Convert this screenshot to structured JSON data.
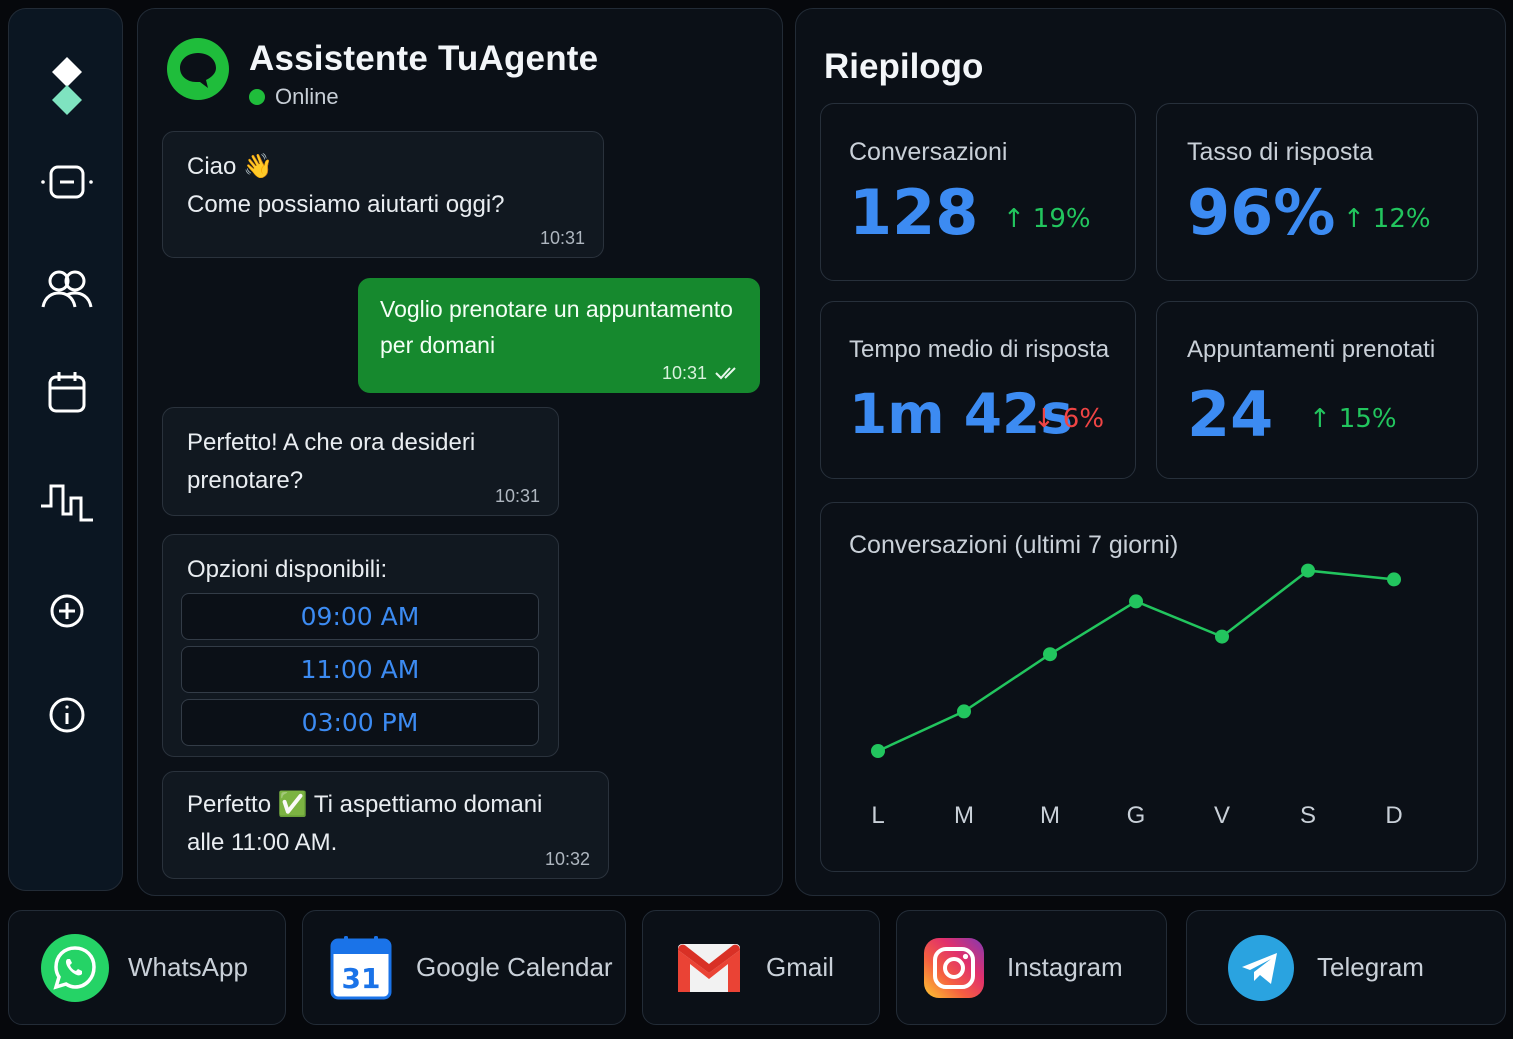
{
  "chat": {
    "title": "Assistente TuAgente",
    "status": "Online",
    "messages": [
      {
        "line1": "Ciao 👋",
        "line2": "Come possiamo aiutarti oggi?",
        "time": "10:31"
      },
      {
        "line1": "Voglio prenotare un appuntamento",
        "line2": "per domani",
        "time": "10:31"
      },
      {
        "line1": "Perfetto! A che ora desideri",
        "line2": "prenotare?",
        "time": "10:31"
      },
      {
        "line1": "Opzioni disponibili:"
      },
      {
        "line1": "Perfetto ✅ Ti aspettiamo domani",
        "line2": "alle 11:00 AM.",
        "time": "10:32"
      }
    ],
    "options": [
      "09:00 AM",
      "11:00 AM",
      "03:00 PM"
    ]
  },
  "summary": {
    "title": "Riepilogo",
    "cards": [
      {
        "label": "Conversazioni",
        "value": "128",
        "delta": "19%",
        "direction": "up"
      },
      {
        "label": "Tasso di risposta",
        "value": "96%",
        "delta": "12%",
        "direction": "up"
      },
      {
        "label": "Tempo medio di risposta",
        "value": "1m 42s",
        "delta": "6%",
        "direction": "down"
      },
      {
        "label": "Appuntamenti prenotati",
        "value": "24",
        "delta": "15%",
        "direction": "up"
      }
    ],
    "chart_title": "Conversazioni (ultimi 7 giorni)"
  },
  "chart_data": {
    "type": "line",
    "title": "Conversazioni (ultimi 7 giorni)",
    "categories": [
      "L",
      "M",
      "M",
      "G",
      "V",
      "S",
      "D"
    ],
    "values": [
      5,
      14,
      27,
      39,
      31,
      46,
      44
    ],
    "ylim": [
      0,
      50
    ],
    "grid": false,
    "line_color": "#22c55e"
  },
  "integrations": [
    "WhatsApp",
    "Google Calendar",
    "Gmail",
    "Instagram",
    "Telegram"
  ],
  "calendar_day": "31",
  "colors": {
    "accent_green": "#16892e",
    "accent_blue": "#3c8bf2",
    "up": "#22c55e",
    "down": "#ef4444"
  },
  "icons": [
    "logo-icon",
    "chat-icon",
    "users-icon",
    "calendar-icon",
    "activity-icon",
    "add-icon",
    "info-icon"
  ]
}
